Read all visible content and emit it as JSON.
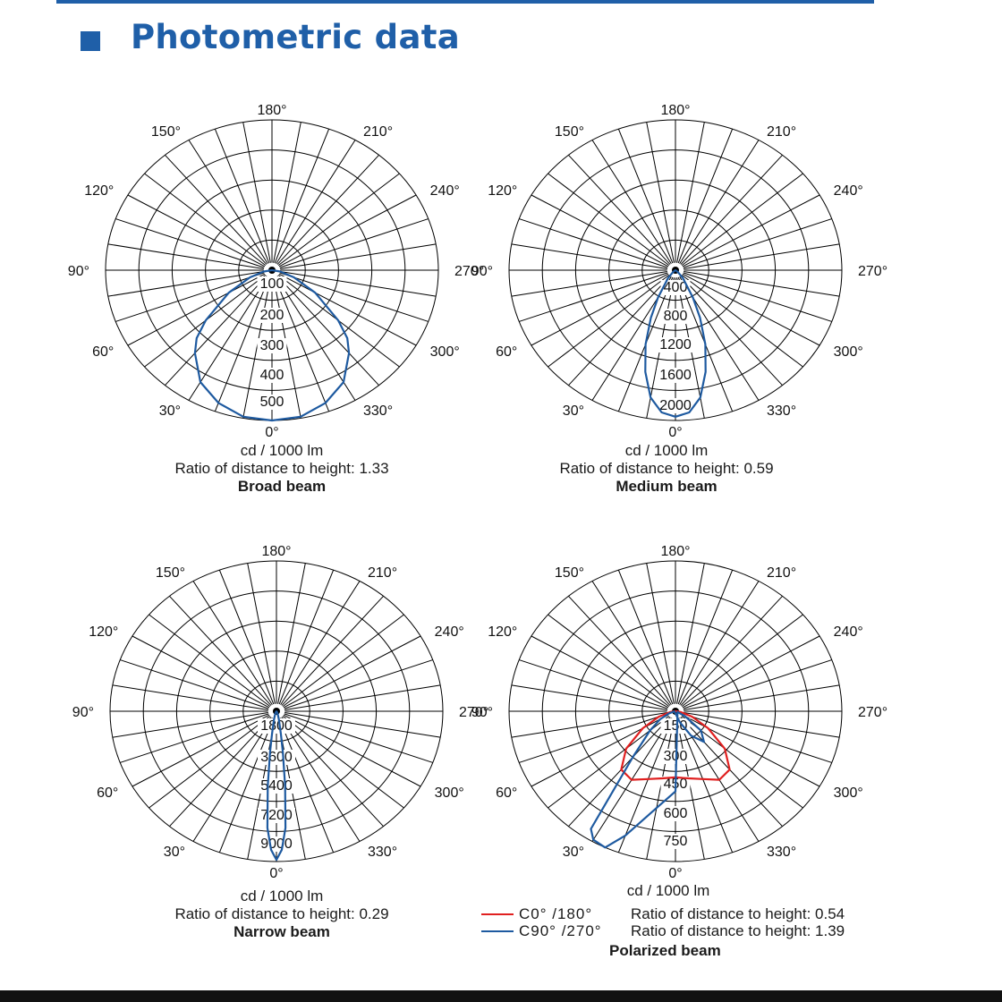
{
  "header": {
    "title": "Photometric data"
  },
  "colors": {
    "accent": "#1f5fa8",
    "curve_blue": "#1e5aa0",
    "curve_red": "#e02020",
    "grid": "#000000"
  },
  "charts": [
    {
      "name": "Broad beam",
      "unit": "cd / 1000 lm",
      "ratio_text": "Ratio of distance to height: 1.33",
      "angle_labels": [
        "180°",
        "150°",
        "120°",
        "90°",
        "60°",
        "30°",
        "0°",
        "330°",
        "300°",
        "270°",
        "240°",
        "210°"
      ],
      "ring_labels": [
        "100",
        "200",
        "300",
        "400",
        "500"
      ]
    },
    {
      "name": "Medium beam",
      "unit": "cd / 1000 lm",
      "ratio_text": "Ratio of distance to height: 0.59",
      "angle_labels": [
        "180°",
        "150°",
        "120°",
        "90°",
        "60°",
        "30°",
        "0°",
        "330°",
        "300°",
        "270°",
        "240°",
        "210°"
      ],
      "ring_labels": [
        "400",
        "800",
        "1200",
        "1600",
        "2000"
      ]
    },
    {
      "name": "Narrow beam",
      "unit": "cd / 1000 lm",
      "ratio_text": "Ratio of distance to height: 0.29",
      "angle_labels": [
        "180°",
        "150°",
        "120°",
        "90°",
        "60°",
        "30°",
        "0°",
        "330°",
        "300°",
        "270°",
        "240°",
        "210°"
      ],
      "ring_labels": [
        "1800",
        "3600",
        "5400",
        "7200",
        "9000"
      ]
    },
    {
      "name": "Polarized beam",
      "unit": "cd / 1000 lm",
      "angle_labels": [
        "180°",
        "150°",
        "120°",
        "90°",
        "60°",
        "30°",
        "0°",
        "330°",
        "300°",
        "270°",
        "240°",
        "210°"
      ],
      "ring_labels": [
        "150",
        "300",
        "450",
        "600",
        "750"
      ],
      "legend": [
        {
          "label": "C0°  /180°",
          "ratio_text": "Ratio of distance to height: 0.54",
          "color": "#e02020"
        },
        {
          "label": "C90°  /270°",
          "ratio_text": "Ratio of distance to height: 1.39",
          "color": "#1e5aa0"
        }
      ]
    }
  ],
  "chart_data": [
    {
      "type": "polar",
      "title": "Broad beam",
      "unit": "cd / 1000 lm",
      "rmax": 500,
      "series": [
        {
          "color": "#1e5aa0",
          "points": [
            [
              0,
              500
            ],
            [
              10,
              495
            ],
            [
              20,
              470
            ],
            [
              30,
              430
            ],
            [
              40,
              360
            ],
            [
              45,
              320
            ],
            [
              50,
              260
            ],
            [
              60,
              150
            ],
            [
              70,
              70
            ],
            [
              80,
              25
            ],
            [
              90,
              0
            ],
            [
              270,
              0
            ],
            [
              280,
              25
            ],
            [
              290,
              70
            ],
            [
              300,
              150
            ],
            [
              310,
              260
            ],
            [
              315,
              320
            ],
            [
              320,
              360
            ],
            [
              330,
              430
            ],
            [
              340,
              470
            ],
            [
              350,
              495
            ],
            [
              360,
              500
            ]
          ]
        }
      ]
    },
    {
      "type": "polar",
      "title": "Medium beam",
      "unit": "cd / 1000 lm",
      "rmax": 2000,
      "series": [
        {
          "color": "#1e5aa0",
          "points": [
            [
              0,
              1950
            ],
            [
              5,
              1900
            ],
            [
              10,
              1720
            ],
            [
              15,
              1400
            ],
            [
              20,
              1050
            ],
            [
              25,
              700
            ],
            [
              30,
              420
            ],
            [
              40,
              140
            ],
            [
              50,
              40
            ],
            [
              60,
              5
            ],
            [
              300,
              5
            ],
            [
              310,
              40
            ],
            [
              320,
              140
            ],
            [
              330,
              420
            ],
            [
              335,
              700
            ],
            [
              340,
              1050
            ],
            [
              345,
              1400
            ],
            [
              350,
              1720
            ],
            [
              355,
              1900
            ],
            [
              360,
              1950
            ]
          ]
        }
      ]
    },
    {
      "type": "polar",
      "title": "Narrow beam",
      "unit": "cd / 1000 lm",
      "rmax": 9000,
      "series": [
        {
          "color": "#1e5aa0",
          "points": [
            [
              0,
              8900
            ],
            [
              2,
              8300
            ],
            [
              4,
              7000
            ],
            [
              6,
              4500
            ],
            [
              8,
              2500
            ],
            [
              10,
              1400
            ],
            [
              15,
              500
            ],
            [
              25,
              150
            ],
            [
              40,
              20
            ],
            [
              320,
              20
            ],
            [
              335,
              150
            ],
            [
              345,
              500
            ],
            [
              350,
              1400
            ],
            [
              352,
              2500
            ],
            [
              354,
              4500
            ],
            [
              356,
              7000
            ],
            [
              358,
              8300
            ],
            [
              360,
              8900
            ]
          ]
        }
      ]
    },
    {
      "type": "polar",
      "title": "Polarized beam",
      "unit": "cd / 1000 lm",
      "rmax": 750,
      "series": [
        {
          "name": "C0°  /180°",
          "color": "#e02020",
          "points": [
            [
              0,
              330
            ],
            [
              10,
              340
            ],
            [
              20,
              360
            ],
            [
              30,
              395
            ],
            [
              40,
              380
            ],
            [
              50,
              290
            ],
            [
              60,
              170
            ],
            [
              70,
              80
            ],
            [
              80,
              25
            ],
            [
              90,
              5
            ],
            [
              270,
              5
            ],
            [
              280,
              25
            ],
            [
              290,
              80
            ],
            [
              300,
              170
            ],
            [
              310,
              290
            ],
            [
              320,
              380
            ],
            [
              330,
              395
            ],
            [
              340,
              360
            ],
            [
              350,
              340
            ],
            [
              360,
              330
            ]
          ]
        },
        {
          "name": "C90°  /270°",
          "color": "#1e5aa0",
          "points": [
            [
              340,
              60
            ],
            [
              330,
              140
            ],
            [
              320,
              200
            ],
            [
              310,
              150
            ],
            [
              300,
              50
            ],
            [
              290,
              10
            ],
            [
              0,
              400
            ],
            [
              10,
              490
            ],
            [
              20,
              660
            ],
            [
              25,
              750
            ],
            [
              30,
              740
            ],
            [
              33,
              700
            ],
            [
              40,
              300
            ],
            [
              50,
              150
            ],
            [
              60,
              80
            ],
            [
              70,
              30
            ],
            [
              80,
              5
            ]
          ]
        }
      ]
    }
  ]
}
